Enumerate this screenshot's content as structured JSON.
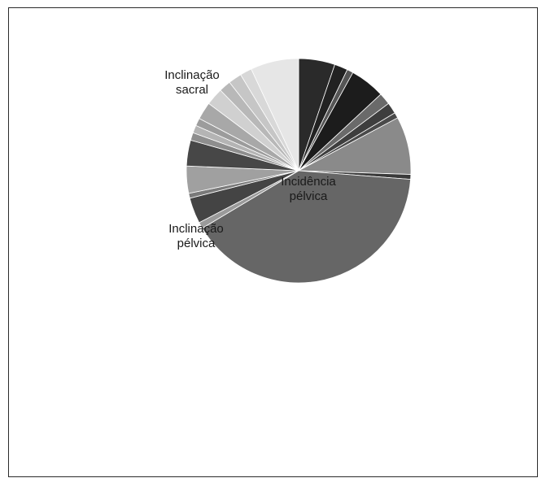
{
  "chart_data": {
    "type": "pie",
    "title": "",
    "labels": [
      {
        "line1": "Inclinação",
        "line2": "sacral"
      },
      {
        "line1": "Incidência",
        "line2": "pélvica"
      },
      {
        "line1": "Inclinação",
        "line2": "pélvica"
      }
    ],
    "slices": [
      {
        "value": 5.2,
        "color": "#2a2a2a"
      },
      {
        "value": 1.9,
        "color": "#222222"
      },
      {
        "value": 0.9,
        "color": "#555555"
      },
      {
        "value": 5.0,
        "color": "#1c1c1c"
      },
      {
        "value": 1.7,
        "color": "#6a6a6a"
      },
      {
        "value": 1.6,
        "color": "#3e3e3e"
      },
      {
        "value": 0.8,
        "color": "#4a4a4a"
      },
      {
        "value": 8.3,
        "color": "#8a8a8a"
      },
      {
        "value": 0.7,
        "color": "#3a3a3a"
      },
      {
        "value": 40.0,
        "color": "#666666"
      },
      {
        "value": 0.9,
        "color": "#9a9a9a"
      },
      {
        "value": 3.7,
        "color": "#444444"
      },
      {
        "value": 0.7,
        "color": "#7a7a7a"
      },
      {
        "value": 3.9,
        "color": "#a0a0a0"
      },
      {
        "value": 3.7,
        "color": "#474747"
      },
      {
        "value": 1.1,
        "color": "#8e8e8e"
      },
      {
        "value": 1.1,
        "color": "#b4b4b4"
      },
      {
        "value": 1.1,
        "color": "#9c9c9c"
      },
      {
        "value": 2.5,
        "color": "#a8a8a8"
      },
      {
        "value": 2.5,
        "color": "#d0d0d0"
      },
      {
        "value": 1.7,
        "color": "#b8b8b8"
      },
      {
        "value": 1.9,
        "color": "#c6c6c6"
      },
      {
        "value": 1.7,
        "color": "#d8d8d8"
      },
      {
        "value": 6.9,
        "color": "#e6e6e6"
      }
    ]
  }
}
